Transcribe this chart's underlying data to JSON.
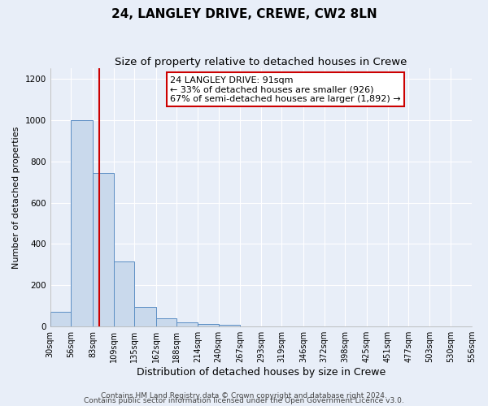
{
  "title": "24, LANGLEY DRIVE, CREWE, CW2 8LN",
  "subtitle": "Size of property relative to detached houses in Crewe",
  "xlabel": "Distribution of detached houses by size in Crewe",
  "ylabel": "Number of detached properties",
  "bin_edges": [
    30,
    56,
    83,
    109,
    135,
    162,
    188,
    214,
    240,
    267,
    293,
    319,
    346,
    372,
    398,
    425,
    451,
    477,
    503,
    530,
    556
  ],
  "bar_heights": [
    70,
    1000,
    745,
    315,
    95,
    40,
    22,
    14,
    10,
    0,
    0,
    0,
    0,
    0,
    0,
    0,
    0,
    0,
    0,
    0
  ],
  "bar_color": "#c9d9ec",
  "bar_edgecolor": "#5b8ec4",
  "vline_x": 91,
  "vline_color": "#cc0000",
  "annotation_line1": "24 LANGLEY DRIVE: 91sqm",
  "annotation_line2": "← 33% of detached houses are smaller (926)",
  "annotation_line3": "67% of semi-detached houses are larger (1,892) →",
  "annotation_box_edgecolor": "#cc0000",
  "annotation_box_facecolor": "#ffffff",
  "ylim": [
    0,
    1250
  ],
  "yticks": [
    0,
    200,
    400,
    600,
    800,
    1000,
    1200
  ],
  "footer1": "Contains HM Land Registry data © Crown copyright and database right 2024.",
  "footer2": "Contains public sector information licensed under the Open Government Licence v3.0.",
  "bg_color": "#e8eef8",
  "plot_bg_color": "#e8eef8",
  "grid_color": "#ffffff",
  "title_fontsize": 11,
  "subtitle_fontsize": 9.5,
  "xlabel_fontsize": 9,
  "ylabel_fontsize": 8,
  "tick_fontsize": 7,
  "footer_fontsize": 6.5
}
